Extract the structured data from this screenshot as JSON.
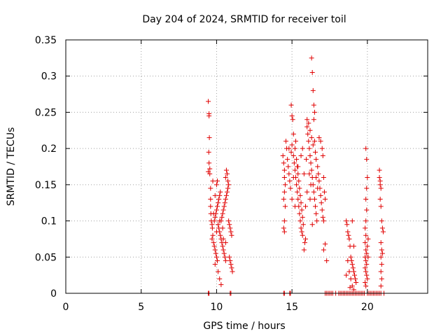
{
  "chart_data": {
    "type": "scatter",
    "title": "Day 204 of 2024, SRMTID for receiver toil",
    "xlabel": "GPS time / hours",
    "ylabel": "SRMTID / TECUs",
    "xlim": [
      0,
      24
    ],
    "ylim": [
      0,
      0.35
    ],
    "xticks": [
      0,
      5,
      10,
      15,
      20
    ],
    "yticks": [
      0,
      0.05,
      0.1,
      0.15,
      0.2,
      0.25,
      0.3,
      0.35
    ],
    "ytick_labels": [
      "0",
      "0.05",
      "0.1",
      "0.15",
      "0.2",
      "0.25",
      "0.3",
      "0.35"
    ],
    "grid": true,
    "marker": "+",
    "color": "#e00000",
    "series": [
      {
        "values": [
          [
            9.45,
            0.265
          ],
          [
            9.5,
            0.248
          ],
          [
            9.5,
            0.245
          ],
          [
            9.52,
            0.215
          ],
          [
            9.48,
            0.195
          ],
          [
            9.5,
            0.18
          ],
          [
            9.55,
            0.172
          ],
          [
            9.45,
            0.168
          ],
          [
            9.55,
            0.165
          ],
          [
            9.6,
            0.145
          ],
          [
            9.6,
            0.13
          ],
          [
            9.6,
            0.12
          ],
          [
            9.62,
            0.11
          ],
          [
            9.65,
            0.1
          ],
          [
            9.7,
            0.095
          ],
          [
            9.72,
            0.09
          ],
          [
            9.75,
            0.08
          ],
          [
            9.7,
            0.075
          ],
          [
            9.8,
            0.07
          ],
          [
            9.85,
            0.065
          ],
          [
            9.9,
            0.06
          ],
          [
            9.95,
            0.055
          ],
          [
            10.0,
            0.05
          ],
          [
            10.05,
            0.045
          ],
          [
            9.85,
            0.1
          ],
          [
            9.9,
            0.105
          ],
          [
            9.95,
            0.11
          ],
          [
            10.0,
            0.115
          ],
          [
            10.05,
            0.12
          ],
          [
            10.1,
            0.125
          ],
          [
            10.15,
            0.13
          ],
          [
            10.2,
            0.135
          ],
          [
            10.25,
            0.14
          ],
          [
            10.1,
            0.095
          ],
          [
            10.15,
            0.09
          ],
          [
            10.2,
            0.085
          ],
          [
            10.25,
            0.08
          ],
          [
            10.3,
            0.075
          ],
          [
            10.35,
            0.07
          ],
          [
            10.4,
            0.065
          ],
          [
            10.45,
            0.06
          ],
          [
            10.5,
            0.055
          ],
          [
            10.55,
            0.05
          ],
          [
            10.6,
            0.045
          ],
          [
            10.3,
            0.1
          ],
          [
            10.35,
            0.105
          ],
          [
            10.4,
            0.11
          ],
          [
            10.45,
            0.115
          ],
          [
            10.5,
            0.12
          ],
          [
            10.55,
            0.125
          ],
          [
            10.6,
            0.13
          ],
          [
            10.65,
            0.135
          ],
          [
            10.7,
            0.14
          ],
          [
            10.75,
            0.145
          ],
          [
            10.8,
            0.15
          ],
          [
            10.6,
            0.16
          ],
          [
            10.65,
            0.17
          ],
          [
            10.7,
            0.165
          ],
          [
            10.75,
            0.155
          ],
          [
            10.8,
            0.1
          ],
          [
            10.85,
            0.095
          ],
          [
            10.9,
            0.09
          ],
          [
            10.95,
            0.085
          ],
          [
            11.0,
            0.08
          ],
          [
            10.85,
            0.05
          ],
          [
            10.9,
            0.045
          ],
          [
            10.95,
            0.04
          ],
          [
            11.0,
            0.035
          ],
          [
            11.05,
            0.03
          ],
          [
            10.2,
            0.02
          ],
          [
            10.3,
            0.012
          ],
          [
            10.1,
            0.03
          ],
          [
            9.9,
            0.04
          ],
          [
            10.0,
            0.15
          ],
          [
            10.05,
            0.155
          ],
          [
            9.75,
            0.155
          ],
          [
            9.9,
            0.135
          ],
          [
            10.4,
            0.09
          ],
          [
            10.2,
            0.1
          ],
          [
            10.0,
            0.085
          ],
          [
            9.8,
            0.11
          ],
          [
            10.45,
            0.075
          ],
          [
            10.6,
            0.07
          ]
        ]
      },
      {
        "values": [
          [
            14.4,
            0.19
          ],
          [
            14.45,
            0.18
          ],
          [
            14.5,
            0.17
          ],
          [
            14.5,
            0.16
          ],
          [
            14.55,
            0.15
          ],
          [
            14.5,
            0.14
          ],
          [
            14.45,
            0.13
          ],
          [
            14.55,
            0.12
          ],
          [
            14.5,
            0.1
          ],
          [
            14.45,
            0.09
          ],
          [
            14.5,
            0.085
          ],
          [
            14.6,
            0.21
          ],
          [
            14.65,
            0.2
          ],
          [
            14.7,
            0.185
          ],
          [
            14.75,
            0.175
          ],
          [
            14.8,
            0.165
          ],
          [
            14.85,
            0.155
          ],
          [
            14.9,
            0.145
          ],
          [
            14.95,
            0.26
          ],
          [
            15.0,
            0.245
          ],
          [
            15.05,
            0.24
          ],
          [
            15.1,
            0.22
          ],
          [
            15.0,
            0.205
          ],
          [
            14.95,
            0.195
          ],
          [
            15.1,
            0.19
          ],
          [
            15.15,
            0.18
          ],
          [
            15.2,
            0.17
          ],
          [
            15.25,
            0.16
          ],
          [
            15.3,
            0.15
          ],
          [
            15.35,
            0.14
          ],
          [
            15.4,
            0.13
          ],
          [
            15.45,
            0.12
          ],
          [
            15.5,
            0.11
          ],
          [
            15.55,
            0.1
          ],
          [
            15.6,
            0.09
          ],
          [
            15.65,
            0.085
          ],
          [
            15.7,
            0.08
          ],
          [
            15.2,
            0.2
          ],
          [
            15.25,
            0.21
          ],
          [
            15.3,
            0.185
          ],
          [
            15.35,
            0.175
          ],
          [
            15.4,
            0.165
          ],
          [
            15.45,
            0.155
          ],
          [
            15.5,
            0.145
          ],
          [
            15.55,
            0.135
          ],
          [
            15.6,
            0.125
          ],
          [
            15.65,
            0.115
          ],
          [
            15.7,
            0.105
          ],
          [
            15.75,
            0.095
          ],
          [
            15.8,
            0.06
          ],
          [
            15.85,
            0.07
          ],
          [
            15.9,
            0.075
          ],
          [
            16.0,
            0.23
          ],
          [
            16.05,
            0.22
          ],
          [
            16.1,
            0.21
          ],
          [
            16.15,
            0.2
          ],
          [
            16.2,
            0.19
          ],
          [
            16.25,
            0.18
          ],
          [
            16.3,
            0.17
          ],
          [
            16.35,
            0.16
          ],
          [
            16.4,
            0.15
          ],
          [
            16.45,
            0.14
          ],
          [
            16.5,
            0.13
          ],
          [
            16.55,
            0.12
          ],
          [
            16.6,
            0.11
          ],
          [
            16.65,
            0.1
          ],
          [
            16.0,
            0.24
          ],
          [
            16.1,
            0.235
          ],
          [
            16.2,
            0.225
          ],
          [
            16.3,
            0.215
          ],
          [
            16.4,
            0.205
          ],
          [
            16.3,
            0.325
          ],
          [
            16.35,
            0.305
          ],
          [
            16.4,
            0.28
          ],
          [
            16.45,
            0.26
          ],
          [
            16.5,
            0.25
          ],
          [
            16.45,
            0.24
          ],
          [
            16.5,
            0.21
          ],
          [
            16.55,
            0.195
          ],
          [
            16.6,
            0.185
          ],
          [
            16.7,
            0.175
          ],
          [
            16.75,
            0.165
          ],
          [
            16.8,
            0.155
          ],
          [
            16.85,
            0.145
          ],
          [
            16.9,
            0.135
          ],
          [
            16.95,
            0.125
          ],
          [
            17.0,
            0.115
          ],
          [
            17.05,
            0.105
          ],
          [
            17.1,
            0.1
          ],
          [
            17.0,
            0.2
          ],
          [
            16.9,
            0.21
          ],
          [
            16.8,
            0.215
          ],
          [
            17.05,
            0.19
          ],
          [
            17.1,
            0.16
          ],
          [
            17.15,
            0.14
          ],
          [
            17.2,
            0.13
          ],
          [
            17.1,
            0.06
          ],
          [
            17.2,
            0.068
          ],
          [
            17.3,
            0.045
          ],
          [
            15.0,
            0.13
          ],
          [
            15.2,
            0.12
          ],
          [
            15.4,
            0.175
          ],
          [
            15.6,
            0.19
          ],
          [
            15.8,
            0.165
          ],
          [
            16.0,
            0.14
          ],
          [
            16.2,
            0.13
          ],
          [
            16.6,
            0.16
          ],
          [
            16.7,
            0.145
          ],
          [
            15.9,
            0.12
          ],
          [
            15.1,
            0.16
          ],
          [
            14.8,
            0.2
          ],
          [
            15.7,
            0.2
          ],
          [
            15.95,
            0.185
          ],
          [
            16.15,
            0.165
          ],
          [
            16.25,
            0.15
          ],
          [
            16.35,
            0.095
          ]
        ]
      },
      {
        "values": [
          [
            18.6,
            0.1
          ],
          [
            18.65,
            0.095
          ],
          [
            18.7,
            0.085
          ],
          [
            18.75,
            0.08
          ],
          [
            18.8,
            0.075
          ],
          [
            18.85,
            0.065
          ],
          [
            18.9,
            0.05
          ],
          [
            18.95,
            0.045
          ],
          [
            19.0,
            0.04
          ],
          [
            19.05,
            0.035
          ],
          [
            19.1,
            0.03
          ],
          [
            19.15,
            0.025
          ],
          [
            19.2,
            0.02
          ],
          [
            19.25,
            0.015
          ],
          [
            18.7,
            0.045
          ],
          [
            18.8,
            0.03
          ],
          [
            18.9,
            0.02
          ],
          [
            19.0,
            0.01
          ],
          [
            19.1,
            0.005
          ],
          [
            19.0,
            0.1
          ],
          [
            19.1,
            0.065
          ],
          [
            18.6,
            0.025
          ],
          [
            18.85,
            0.008
          ]
        ]
      },
      {
        "values": [
          [
            19.9,
            0.2
          ],
          [
            19.95,
            0.185
          ],
          [
            20.0,
            0.16
          ],
          [
            19.95,
            0.145
          ],
          [
            19.9,
            0.13
          ],
          [
            19.95,
            0.115
          ],
          [
            19.9,
            0.1
          ],
          [
            19.85,
            0.09
          ],
          [
            19.9,
            0.08
          ],
          [
            19.85,
            0.07
          ],
          [
            19.9,
            0.06
          ],
          [
            19.95,
            0.055
          ],
          [
            19.85,
            0.05
          ],
          [
            19.9,
            0.045
          ],
          [
            19.95,
            0.04
          ],
          [
            19.85,
            0.035
          ],
          [
            19.9,
            0.03
          ],
          [
            19.95,
            0.025
          ],
          [
            20.0,
            0.02
          ],
          [
            19.85,
            0.015
          ],
          [
            19.9,
            0.01
          ],
          [
            20.05,
            0.05
          ],
          [
            20.0,
            0.065
          ],
          [
            20.05,
            0.075
          ]
        ]
      },
      {
        "values": [
          [
            20.8,
            0.17
          ],
          [
            20.85,
            0.155
          ],
          [
            20.9,
            0.145
          ],
          [
            20.85,
            0.13
          ],
          [
            20.9,
            0.12
          ],
          [
            20.95,
            0.1
          ],
          [
            21.0,
            0.09
          ],
          [
            21.05,
            0.085
          ],
          [
            20.9,
            0.07
          ],
          [
            20.95,
            0.06
          ],
          [
            20.9,
            0.05
          ],
          [
            20.95,
            0.04
          ],
          [
            20.9,
            0.03
          ],
          [
            20.95,
            0.02
          ],
          [
            20.9,
            0.01
          ],
          [
            20.85,
            0.15
          ],
          [
            20.8,
            0.16
          ],
          [
            21.0,
            0.055
          ]
        ]
      },
      {
        "values": [
          [
            9.45,
            0
          ],
          [
            9.5,
            0
          ],
          [
            10.9,
            0
          ],
          [
            10.95,
            0
          ],
          [
            14.45,
            0
          ],
          [
            14.5,
            0
          ],
          [
            14.85,
            0
          ],
          [
            14.9,
            0
          ],
          [
            17.2,
            0
          ],
          [
            17.3,
            0
          ],
          [
            17.4,
            0
          ],
          [
            17.5,
            0
          ],
          [
            17.6,
            0
          ],
          [
            17.7,
            0
          ],
          [
            17.9,
            0
          ],
          [
            18.1,
            0
          ],
          [
            18.2,
            0
          ],
          [
            18.3,
            0
          ],
          [
            18.4,
            0
          ],
          [
            18.5,
            0
          ],
          [
            18.6,
            0
          ],
          [
            18.7,
            0
          ],
          [
            18.8,
            0
          ],
          [
            18.9,
            0
          ],
          [
            19.0,
            0
          ],
          [
            19.1,
            0
          ],
          [
            19.2,
            0
          ],
          [
            19.3,
            0
          ],
          [
            19.4,
            0
          ],
          [
            19.5,
            0
          ],
          [
            19.6,
            0
          ],
          [
            19.7,
            0
          ],
          [
            19.8,
            0
          ],
          [
            20.0,
            0
          ],
          [
            20.1,
            0
          ],
          [
            20.2,
            0
          ],
          [
            20.3,
            0
          ],
          [
            20.4,
            0
          ],
          [
            20.5,
            0
          ],
          [
            20.6,
            0
          ],
          [
            20.7,
            0
          ],
          [
            20.8,
            0
          ],
          [
            20.9,
            0
          ],
          [
            21.1,
            0
          ]
        ]
      }
    ]
  }
}
